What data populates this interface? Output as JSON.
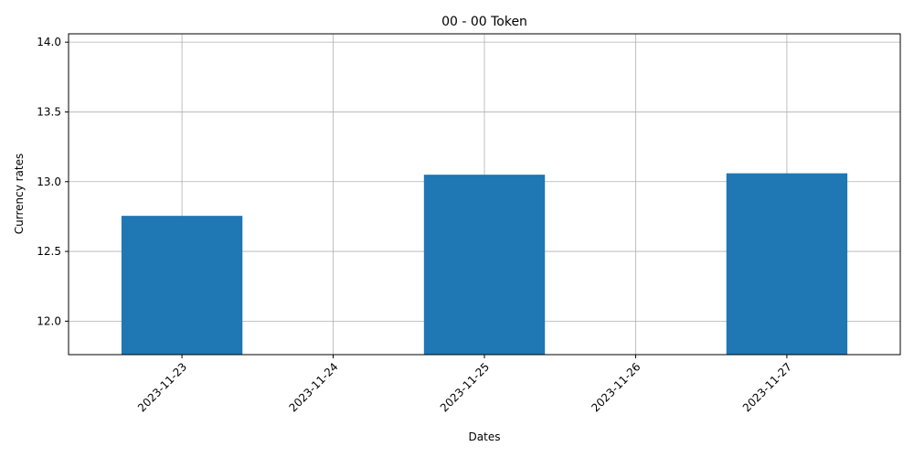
{
  "chart_data": {
    "type": "bar",
    "title": "00 - 00 Token",
    "xlabel": "Dates",
    "ylabel": "Currency rates",
    "categories": [
      "2023-11-23",
      "2023-11-24",
      "2023-11-25",
      "2023-11-26",
      "2023-11-27"
    ],
    "values": [
      12.755,
      null,
      13.05,
      null,
      13.06
    ],
    "ylim": [
      11.76,
      14.06
    ],
    "yticks": [
      "12.0",
      "12.5",
      "13.0",
      "13.5",
      "14.0"
    ],
    "grid": true,
    "bar_color": "#1f77b4",
    "x_tick_rotation": -45
  }
}
